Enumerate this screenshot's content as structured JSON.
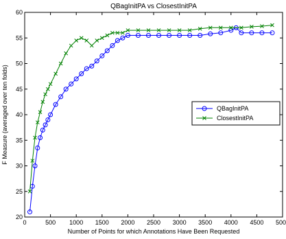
{
  "chart_data": {
    "type": "line",
    "title": "QBagInitPA vs ClosestInitPA",
    "xlabel": "Number of Points for which Annotations Have Been Requested",
    "ylabel": "F Measure (averaged over ten folds)",
    "xlim": [
      0,
      5000
    ],
    "ylim": [
      20,
      60
    ],
    "xticks": [
      0,
      500,
      1000,
      1500,
      2000,
      2500,
      3000,
      3500,
      4000,
      4500,
      5000
    ],
    "yticks": [
      20,
      25,
      30,
      35,
      40,
      45,
      50,
      55,
      60
    ],
    "grid": false,
    "legend_position": "right",
    "series": [
      {
        "name": "QBagInitPA",
        "color": "#0000ff",
        "marker": "circle",
        "x": [
          100,
          150,
          200,
          250,
          300,
          350,
          400,
          450,
          500,
          600,
          700,
          800,
          900,
          1000,
          1100,
          1200,
          1300,
          1400,
          1500,
          1600,
          1700,
          1800,
          1900,
          2000,
          2200,
          2400,
          2600,
          2800,
          3000,
          3200,
          3400,
          3600,
          3800,
          4000,
          4100,
          4200,
          4400,
          4600,
          4800
        ],
        "y": [
          21,
          26,
          30,
          33.5,
          35.5,
          37,
          38,
          39,
          40,
          42,
          43.5,
          45,
          46,
          47,
          48,
          49,
          49.5,
          50.5,
          51.5,
          52.5,
          53.5,
          54.5,
          55,
          55.5,
          55.5,
          55.5,
          55.5,
          55.5,
          55.5,
          55.5,
          55.5,
          55.8,
          56,
          56.5,
          57,
          56,
          56,
          56,
          56
        ]
      },
      {
        "name": "ClosestInitPA",
        "color": "#008000",
        "marker": "x",
        "x": [
          100,
          150,
          200,
          250,
          300,
          350,
          400,
          450,
          500,
          600,
          700,
          800,
          900,
          1000,
          1100,
          1200,
          1300,
          1400,
          1500,
          1600,
          1700,
          1800,
          1900,
          2000,
          2200,
          2400,
          2600,
          2800,
          3000,
          3200,
          3400,
          3600,
          3800,
          4000,
          4200,
          4400,
          4600,
          4800
        ],
        "y": [
          25,
          31,
          35.5,
          38.5,
          40.5,
          42.5,
          44,
          45,
          46,
          48,
          50,
          52,
          53.5,
          54.5,
          55,
          54.5,
          53.5,
          54.5,
          55,
          55.5,
          56,
          56,
          56,
          56.5,
          56.5,
          56.5,
          56.5,
          56.5,
          56.5,
          56.5,
          56.8,
          57,
          57,
          57,
          57,
          57.2,
          57.3,
          57.5
        ]
      }
    ]
  }
}
